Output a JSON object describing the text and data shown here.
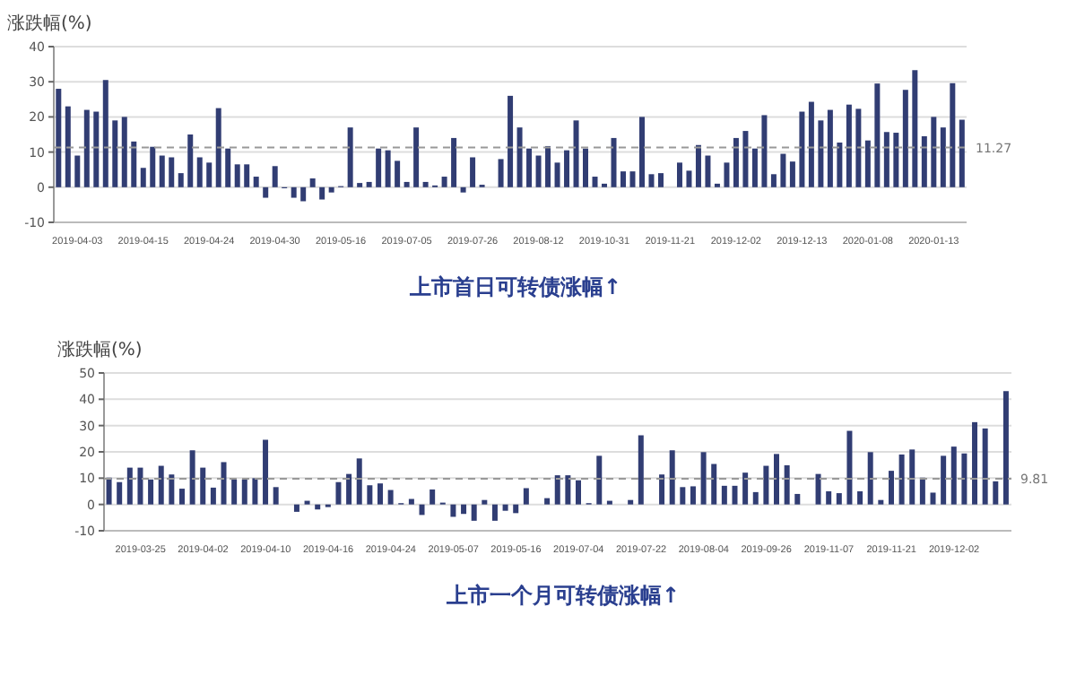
{
  "chart_data": [
    {
      "type": "bar",
      "title": "上市首日可转债涨幅↑",
      "ylabel": "涨跌幅(%)",
      "color": "#313d73",
      "grid": "y",
      "categories": [
        null,
        null,
        "2019-04-03",
        null,
        null,
        null,
        null,
        null,
        null,
        "2019-04-15",
        null,
        null,
        null,
        null,
        null,
        null,
        "2019-04-24",
        null,
        null,
        null,
        null,
        null,
        null,
        "2019-04-30",
        null,
        null,
        null,
        null,
        null,
        null,
        "2019-05-16",
        null,
        null,
        null,
        null,
        null,
        null,
        "2019-07-05",
        null,
        null,
        null,
        null,
        null,
        null,
        "2019-07-26",
        null,
        null,
        null,
        null,
        null,
        null,
        "2019-08-12",
        null,
        null,
        null,
        null,
        null,
        null,
        "2019-10-31",
        null,
        null,
        null,
        null,
        null,
        null,
        "2019-11-21",
        null,
        null,
        null,
        null,
        null,
        null,
        "2019-12-02",
        null,
        null,
        null,
        null,
        null,
        null,
        "2019-12-13",
        null,
        null,
        null,
        null,
        null,
        null,
        "2020-01-08",
        null,
        null,
        null,
        null,
        null,
        null,
        "2020-01-13",
        null,
        null,
        null
      ],
      "values": [
        28,
        23,
        9,
        22,
        21.5,
        30.5,
        19,
        20,
        13,
        5.5,
        11.5,
        9,
        8.5,
        4,
        15,
        8.5,
        7,
        22.5,
        11,
        6.5,
        6.5,
        3,
        -3,
        6,
        -0.3,
        -3,
        -4,
        2.5,
        -3.5,
        -1.5,
        0.3,
        17,
        1.2,
        1.5,
        11,
        10.5,
        7.5,
        1.5,
        17,
        1.5,
        0.5,
        3,
        14,
        -1.5,
        8.5,
        0.7,
        0,
        8,
        26,
        17,
        11,
        9,
        11.7,
        7,
        10.5,
        19,
        11,
        3,
        1,
        14,
        4.5,
        4.5,
        20,
        3.7,
        4,
        0,
        7,
        4.7,
        12,
        9,
        1,
        7,
        14,
        16,
        11,
        20.5,
        3.7,
        9.5,
        7.3,
        21.5,
        24.3,
        19,
        22,
        12.7,
        23.5,
        22.3,
        13.3,
        29.5,
        15.7,
        15.5,
        27.7,
        33.3,
        14.5,
        20,
        17,
        29.6,
        19.2
      ],
      "ylim": [
        -10,
        40
      ],
      "yticks": [
        -10,
        0,
        10,
        20,
        30,
        40
      ],
      "ref_lines": [
        {
          "axis": "y",
          "value": 11.27,
          "label": "11.27",
          "line_style": "dashed",
          "color": "#999999"
        }
      ]
    },
    {
      "type": "bar",
      "title": "上市一个月可转债涨幅↑",
      "ylabel": "涨跌幅(%)",
      "color": "#313d73",
      "grid": "y",
      "categories": [
        null,
        null,
        null,
        "2019-03-25",
        null,
        null,
        null,
        null,
        null,
        "2019-04-02",
        null,
        null,
        null,
        null,
        null,
        "2019-04-10",
        null,
        null,
        null,
        null,
        null,
        "2019-04-16",
        null,
        null,
        null,
        null,
        null,
        "2019-04-24",
        null,
        null,
        null,
        null,
        null,
        "2019-05-07",
        null,
        null,
        null,
        null,
        null,
        "2019-05-16",
        null,
        null,
        null,
        null,
        null,
        "2019-07-04",
        null,
        null,
        null,
        null,
        null,
        "2019-07-22",
        null,
        null,
        null,
        null,
        null,
        "2019-08-04",
        null,
        null,
        null,
        null,
        null,
        "2019-09-26",
        null,
        null,
        null,
        null,
        null,
        "2019-11-07",
        null,
        null,
        null,
        null,
        null,
        "2019-11-21",
        null,
        null,
        null,
        null,
        null,
        "2019-12-02",
        null,
        null,
        null,
        null,
        null
      ],
      "values": [
        10.2,
        8.5,
        14,
        14,
        9.5,
        14.7,
        11.4,
        6,
        20.6,
        14,
        6.4,
        16.1,
        9.5,
        9.5,
        10,
        24.6,
        6.6,
        0,
        -2.8,
        1.4,
        -1.9,
        -1,
        8.5,
        11.6,
        17.5,
        7.3,
        8,
        5.5,
        0.5,
        2.1,
        -4,
        5.7,
        0.7,
        -4.7,
        -3.6,
        -6.2,
        1.7,
        -6.2,
        -2.4,
        -3.3,
        6.2,
        0,
        2.4,
        11.1,
        11.1,
        9.2,
        0.5,
        18.5,
        1.4,
        0,
        1.7,
        26.3,
        0,
        11.4,
        20.6,
        6.6,
        6.9,
        19.9,
        15.4,
        7.1,
        7.1,
        12.1,
        4.7,
        14.7,
        19.2,
        14.9,
        4,
        0,
        11.6,
        5,
        4.3,
        28,
        5,
        19.9,
        1.7,
        12.8,
        19,
        20.9,
        10.2,
        4.5,
        18.5,
        22,
        19.4,
        31.3,
        28.9,
        8.8,
        43.1
      ],
      "ylim": [
        -10,
        50
      ],
      "yticks": [
        -10,
        0,
        10,
        20,
        30,
        40,
        50
      ],
      "ref_lines": [
        {
          "axis": "y",
          "value": 9.81,
          "label": "9.81",
          "line_style": "dashed",
          "color": "#999999"
        }
      ]
    }
  ]
}
